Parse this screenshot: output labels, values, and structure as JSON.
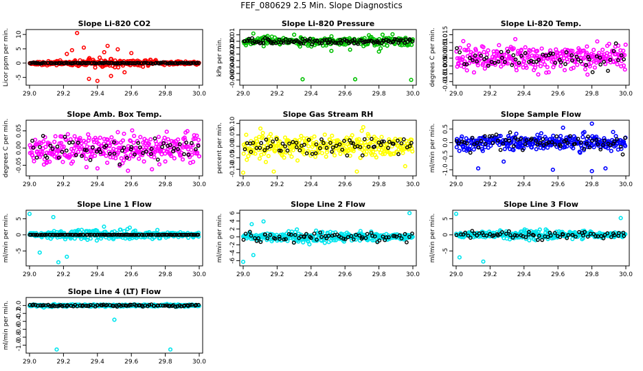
{
  "page": {
    "title": "FEF_080629  2.5 Min. Slope Diagnostics"
  },
  "chart_data": [
    {
      "type": "scatter",
      "title": "Slope Li-820 CO2",
      "ylabel": "Licor ppm per min.",
      "xlabel": "",
      "xlim": [
        29.0,
        30.0
      ],
      "ylim": [
        -7,
        11
      ],
      "x_ticks": [
        29.0,
        29.2,
        29.4,
        29.6,
        29.8,
        30.0
      ],
      "x_tick_labels": [
        "29.0",
        "29.2",
        "29.4",
        "29.6",
        "29.8",
        "30.0"
      ],
      "y_ticks": [
        -5,
        0,
        5,
        10
      ],
      "y_tick_labels": [
        "-5",
        "0",
        "5",
        "10"
      ],
      "colors": {
        "main": "#ff0000",
        "secondary": "#000000"
      },
      "noise": {
        "spread": 1.2,
        "outliers": [
          [
            29.28,
            10.5
          ],
          [
            29.4,
            -6.2
          ],
          [
            29.25,
            4.5
          ],
          [
            29.46,
            6
          ],
          [
            29.52,
            4.8
          ],
          [
            29.6,
            3.5
          ],
          [
            29.35,
            -5.5
          ],
          [
            29.22,
            3.2
          ],
          [
            29.48,
            -4.5
          ],
          [
            29.56,
            -3.2
          ],
          [
            29.32,
            5.4
          ],
          [
            29.44,
            3.8
          ]
        ],
        "taper": 0.3,
        "secondary_spread": 0.15
      },
      "series": [
        {
          "name": "main",
          "color": "#ff0000",
          "count": 300
        },
        {
          "name": "secondary",
          "color": "#000000",
          "count": 120
        }
      ]
    },
    {
      "type": "scatter",
      "title": "Slope Li-820 Pressure",
      "ylabel": "kPa per min.",
      "xlabel": "",
      "xlim": [
        29.0,
        30.0
      ],
      "ylim": [
        -0.065,
        0.015
      ],
      "x_ticks": [
        29.0,
        29.2,
        29.4,
        29.6,
        29.8,
        30.0
      ],
      "x_tick_labels": [
        "29.0",
        "29.2",
        "29.4",
        "29.6",
        "29.8",
        "30.0"
      ],
      "y_ticks": [
        -0.06,
        -0.05,
        -0.04,
        -0.03,
        -0.02,
        -0.01,
        0.0,
        0.01
      ],
      "y_tick_labels": [
        "-0.06",
        "-0.05",
        "-0.04",
        "-0.03",
        "-0.02",
        "-0.01",
        "0.00",
        "0.01"
      ],
      "colors": {
        "main": "#00c000",
        "secondary": "#000000"
      },
      "noise": {
        "spread": 0.006,
        "outliers": [
          [
            29.35,
            -0.059
          ],
          [
            29.66,
            -0.059
          ],
          [
            29.99,
            -0.06
          ],
          [
            29.8,
            -0.016
          ],
          [
            29.52,
            -0.015
          ],
          [
            29.63,
            -0.013
          ],
          [
            29.06,
            0.012
          ],
          [
            29.88,
            0.011
          ]
        ],
        "taper": 0.9,
        "secondary_spread": 0.004
      },
      "series": [
        {
          "name": "main",
          "color": "#00c000",
          "count": 260
        },
        {
          "name": "secondary",
          "color": "#000000",
          "count": 110
        }
      ]
    },
    {
      "type": "scatter",
      "title": "Slope Li-820 Temp.",
      "ylabel": "degrees C per min.",
      "xlabel": "",
      "xlim": [
        29.0,
        30.0
      ],
      "ylim": [
        -0.016,
        0.017
      ],
      "x_ticks": [
        29.0,
        29.2,
        29.4,
        29.6,
        29.8,
        30.0
      ],
      "x_tick_labels": [
        "29.0",
        "29.2",
        "29.4",
        "29.6",
        "29.8",
        "30.0"
      ],
      "y_ticks": [
        -0.015,
        -0.01,
        -0.005,
        0.0,
        0.005,
        0.01,
        0.015
      ],
      "y_tick_labels": [
        "-0.015",
        "-0.010",
        "-0.005",
        "0.000",
        "0.005",
        "0.010",
        "0.015"
      ],
      "colors": {
        "main": "#ff00ff",
        "secondary": "#000000"
      },
      "noise": {
        "spread": 0.007,
        "outliers": [],
        "taper": 1.0,
        "secondary_spread": 0.006
      },
      "series": [
        {
          "name": "main",
          "color": "#ff00ff",
          "count": 300
        },
        {
          "name": "secondary",
          "color": "#000000",
          "count": 60
        }
      ]
    },
    {
      "type": "scatter",
      "title": "Slope Amb. Box Temp.",
      "ylabel": "degrees C per min.",
      "xlabel": "",
      "xlim": [
        29.0,
        30.0
      ],
      "ylim": [
        -0.075,
        0.075
      ],
      "x_ticks": [
        29.0,
        29.2,
        29.4,
        29.6,
        29.8,
        30.0
      ],
      "x_tick_labels": [
        "29.0",
        "29.2",
        "29.4",
        "29.6",
        "29.8",
        "30.0"
      ],
      "y_ticks": [
        -0.05,
        0.0,
        0.05
      ],
      "y_tick_labels": [
        "-0.05",
        "0.00",
        "0.05"
      ],
      "colors": {
        "main": "#ff00ff",
        "secondary": "#000000"
      },
      "noise": {
        "spread": 0.035,
        "outliers": [],
        "taper": 1.0,
        "secondary_spread": 0.03
      },
      "series": [
        {
          "name": "main",
          "color": "#ff00ff",
          "count": 320
        },
        {
          "name": "secondary",
          "color": "#000000",
          "count": 60
        }
      ]
    },
    {
      "type": "scatter",
      "title": "Slope Gas Stream RH",
      "ylabel": "percent per min.",
      "xlabel": "",
      "xlim": [
        29.0,
        30.0
      ],
      "ylim": [
        -0.12,
        0.105
      ],
      "x_ticks": [
        29.0,
        29.2,
        29.4,
        29.6,
        29.8,
        30.0
      ],
      "x_tick_labels": [
        "29.0",
        "29.2",
        "29.4",
        "29.6",
        "29.8",
        "30.0"
      ],
      "y_ticks": [
        -0.1,
        -0.05,
        0.0,
        0.05,
        0.1
      ],
      "y_tick_labels": [
        "-0.10",
        "-0.05",
        "0.00",
        "0.05",
        "0.10"
      ],
      "colors": {
        "main": "#ffff00",
        "secondary": "#000000"
      },
      "noise": {
        "spread": 0.045,
        "outliers": [
          [
            29.0,
            -0.115
          ],
          [
            29.18,
            -0.11
          ],
          [
            29.67,
            -0.11
          ]
        ],
        "taper": 1.0,
        "secondary_spread": 0.035
      },
      "series": [
        {
          "name": "main",
          "color": "#ffff00",
          "count": 320
        },
        {
          "name": "secondary",
          "color": "#000000",
          "count": 70
        }
      ]
    },
    {
      "type": "scatter",
      "title": "Slope Sample Flow",
      "ylabel": "ml/min per min.",
      "xlabel": "",
      "xlim": [
        29.0,
        30.0
      ],
      "ylim": [
        -1.15,
        0.75
      ],
      "x_ticks": [
        29.0,
        29.2,
        29.4,
        29.6,
        29.8,
        30.0
      ],
      "x_tick_labels": [
        "29.0",
        "29.2",
        "29.4",
        "29.6",
        "29.8",
        "30.0"
      ],
      "y_ticks": [
        -1.0,
        -0.5,
        0.0,
        0.5
      ],
      "y_tick_labels": [
        "-1.0",
        "-0.5",
        "0.0",
        "0.5"
      ],
      "colors": {
        "main": "#0000ff",
        "secondary": "#000000"
      },
      "noise": {
        "spread": 0.22,
        "outliers": [
          [
            29.8,
            0.7
          ],
          [
            29.57,
            -1.0
          ],
          [
            29.8,
            -1.05
          ],
          [
            29.13,
            -0.95
          ],
          [
            29.88,
            -0.95
          ],
          [
            29.28,
            -0.7
          ],
          [
            29.63,
            0.55
          ]
        ],
        "taper": 1.0,
        "secondary_spread": 0.25
      },
      "series": [
        {
          "name": "main",
          "color": "#0000ff",
          "count": 300
        },
        {
          "name": "secondary",
          "color": "#000000",
          "count": 70
        }
      ]
    },
    {
      "type": "scatter",
      "title": "Slope Line 1 Flow",
      "ylabel": "ml/min per min.",
      "xlabel": "",
      "xlim": [
        29.0,
        30.0
      ],
      "ylim": [
        -9,
        7
      ],
      "x_ticks": [
        29.0,
        29.2,
        29.4,
        29.6,
        29.8,
        30.0
      ],
      "x_tick_labels": [
        "29.0",
        "29.2",
        "29.4",
        "29.6",
        "29.8",
        "30.0"
      ],
      "y_ticks": [
        -5,
        0,
        5
      ],
      "y_tick_labels": [
        "-5",
        "0",
        "5"
      ],
      "colors": {
        "main": "#00e5ee",
        "secondary": "#000000"
      },
      "noise": {
        "spread": 1.6,
        "outliers": [
          [
            29.0,
            6.5
          ],
          [
            29.17,
            -8.5
          ],
          [
            29.22,
            -6.8
          ],
          [
            29.06,
            -5.5
          ],
          [
            29.14,
            5.5
          ]
        ],
        "taper": 0.35,
        "secondary_spread": 0.05
      },
      "series": [
        {
          "name": "main",
          "color": "#00e5ee",
          "count": 300
        },
        {
          "name": "secondary",
          "color": "#000000",
          "count": 110
        }
      ]
    },
    {
      "type": "scatter",
      "title": "Slope Line 2 Flow",
      "ylabel": "ml/min per min.",
      "xlabel": "",
      "xlim": [
        29.0,
        30.0
      ],
      "ylim": [
        -6.8,
        6.2
      ],
      "x_ticks": [
        29.0,
        29.2,
        29.4,
        29.6,
        29.8,
        30.0
      ],
      "x_tick_labels": [
        "29.0",
        "29.2",
        "29.4",
        "29.6",
        "29.8",
        "30.0"
      ],
      "y_ticks": [
        -6,
        -4,
        -2,
        0,
        2,
        4,
        6
      ],
      "y_tick_labels": [
        "-6",
        "-4",
        "-2",
        "0",
        "2",
        "4",
        "6"
      ],
      "colors": {
        "main": "#00e5ee",
        "secondary": "#000000"
      },
      "noise": {
        "spread": 1.3,
        "outliers": [
          [
            29.0,
            -6.3
          ],
          [
            29.06,
            -4.6
          ],
          [
            29.98,
            6.0
          ],
          [
            29.05,
            3.2
          ],
          [
            29.12,
            3.9
          ]
        ],
        "taper": 0.45,
        "secondary_spread": 0.9
      },
      "series": [
        {
          "name": "main",
          "color": "#00e5ee",
          "count": 300
        },
        {
          "name": "secondary",
          "color": "#000000",
          "count": 70
        }
      ]
    },
    {
      "type": "scatter",
      "title": "Slope Line 3 Flow",
      "ylabel": "ml/min per min.",
      "xlabel": "",
      "xlim": [
        29.0,
        30.0
      ],
      "ylim": [
        -9,
        7
      ],
      "x_ticks": [
        29.0,
        29.2,
        29.4,
        29.6,
        29.8,
        30.0
      ],
      "x_tick_labels": [
        "29.0",
        "29.2",
        "29.4",
        "29.6",
        "29.8",
        "30.0"
      ],
      "y_ticks": [
        -5,
        0,
        5
      ],
      "y_tick_labels": [
        "-5",
        "0",
        "5"
      ],
      "colors": {
        "main": "#00e5ee",
        "secondary": "#000000"
      },
      "noise": {
        "spread": 1.3,
        "outliers": [
          [
            29.0,
            6.5
          ],
          [
            29.16,
            -8.3
          ],
          [
            29.02,
            -7.0
          ],
          [
            29.97,
            5.2
          ]
        ],
        "taper": 0.45,
        "secondary_spread": 0.9
      },
      "series": [
        {
          "name": "main",
          "color": "#00e5ee",
          "count": 300
        },
        {
          "name": "secondary",
          "color": "#000000",
          "count": 70
        }
      ]
    },
    {
      "type": "scatter",
      "title": "Slope Line 4 (LT) Flow",
      "ylabel": "ml/min per min.",
      "xlabel": "",
      "xlim": [
        29.0,
        30.0
      ],
      "ylim": [
        -1.15,
        0.15
      ],
      "x_ticks": [
        29.0,
        29.2,
        29.4,
        29.6,
        29.8,
        30.0
      ],
      "x_tick_labels": [
        "29.0",
        "29.2",
        "29.4",
        "29.6",
        "29.8",
        "30.0"
      ],
      "y_ticks": [
        -1.0,
        -0.8,
        -0.6,
        -0.4,
        -0.2,
        0.0
      ],
      "y_tick_labels": [
        "-1.0",
        "-0.8",
        "-0.6",
        "-0.4",
        "-0.2",
        "0.0"
      ],
      "colors": {
        "main": "#00e5ee",
        "secondary": "#000000"
      },
      "noise": {
        "spread": 0.025,
        "outliers": [
          [
            29.16,
            -1.11
          ],
          [
            29.83,
            -1.11
          ],
          [
            29.5,
            -0.36
          ]
        ],
        "taper": 1.0,
        "secondary_spread": 0.02
      },
      "series": [
        {
          "name": "main",
          "color": "#00e5ee",
          "count": 280
        },
        {
          "name": "secondary",
          "color": "#000000",
          "count": 90
        }
      ]
    }
  ]
}
